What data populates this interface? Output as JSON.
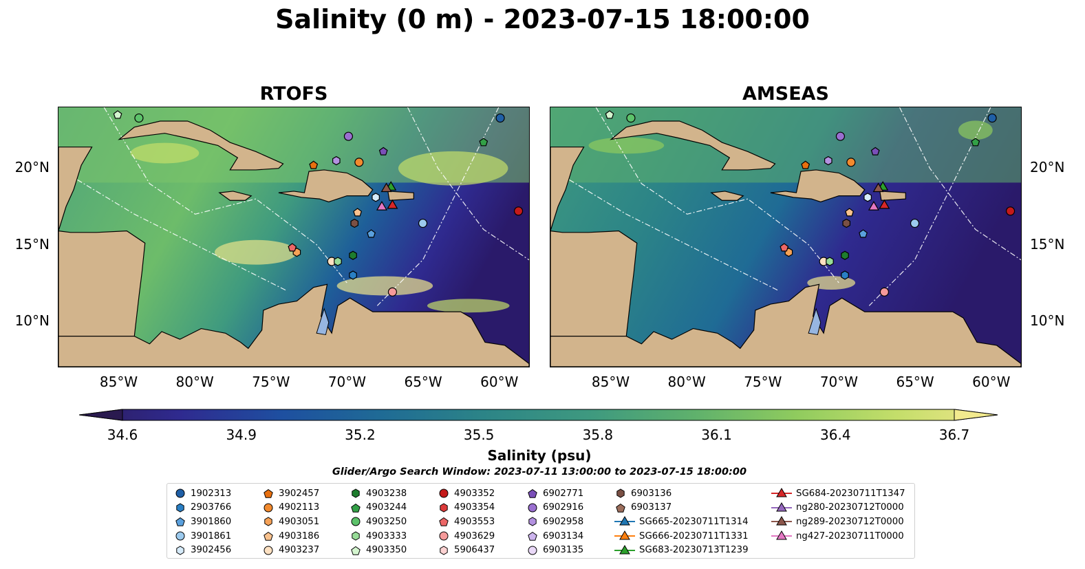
{
  "title": "Salinity (0 m) - 2023-07-15 18:00:00",
  "panels": [
    {
      "title": "RTOFS"
    },
    {
      "title": "AMSEAS"
    }
  ],
  "axes": {
    "x_ticks": [
      "85°W",
      "80°W",
      "75°W",
      "70°W",
      "65°W",
      "60°W"
    ],
    "y_ticks": [
      "20°N",
      "15°N",
      "10°N"
    ]
  },
  "map_extent": {
    "lon_min": -89,
    "lon_max": -58,
    "lat_min": 7,
    "lat_max": 24
  },
  "colorbar": {
    "ticks": [
      "34.6",
      "34.9",
      "35.2",
      "35.5",
      "35.8",
      "36.1",
      "36.4",
      "36.7"
    ],
    "label": "Salinity (psu)",
    "min": 34.6,
    "max": 36.7,
    "colors": [
      "#2c1c5c",
      "#2f2a8f",
      "#1e4fa0",
      "#1f6b95",
      "#2c8487",
      "#3f9a7f",
      "#5fb16c",
      "#8fcb5e",
      "#c4de6a",
      "#f0e68c"
    ]
  },
  "search_window": "Glider/Argo Search Window: 2023-07-11 13:00:00 to 2023-07-15 18:00:00",
  "land_color": "#d2b48c",
  "lake_color": "#97b6e1",
  "legend": {
    "columns": [
      [
        {
          "label": "1902313",
          "marker": "circle",
          "color": "#1f5fa6"
        },
        {
          "label": "2903766",
          "marker": "hexagon",
          "color": "#2a7fc4"
        },
        {
          "label": "3901860",
          "marker": "pentagon",
          "color": "#5aa0dd"
        },
        {
          "label": "3901861",
          "marker": "circle",
          "color": "#9ccaee"
        },
        {
          "label": "3902456",
          "marker": "hexagon",
          "color": "#d6ebfa"
        }
      ],
      [
        {
          "label": "3902457",
          "marker": "pentagon",
          "color": "#e8700f"
        },
        {
          "label": "4902113",
          "marker": "circle",
          "color": "#f28a2e"
        },
        {
          "label": "4903051",
          "marker": "hexagon",
          "color": "#f6a257"
        },
        {
          "label": "4903186",
          "marker": "pentagon",
          "color": "#f9c28e"
        },
        {
          "label": "4903237",
          "marker": "circle",
          "color": "#fde1c2"
        }
      ],
      [
        {
          "label": "4903238",
          "marker": "hexagon",
          "color": "#1e7d2e"
        },
        {
          "label": "4903244",
          "marker": "pentagon",
          "color": "#33a047"
        },
        {
          "label": "4903250",
          "marker": "circle",
          "color": "#5cc26a"
        },
        {
          "label": "4903333",
          "marker": "hexagon",
          "color": "#98dc98"
        },
        {
          "label": "4903350",
          "marker": "pentagon",
          "color": "#d4f5cf"
        }
      ],
      [
        {
          "label": "4903352",
          "marker": "circle",
          "color": "#c41a1a"
        },
        {
          "label": "4903354",
          "marker": "hexagon",
          "color": "#dc3a3a"
        },
        {
          "label": "4903553",
          "marker": "pentagon",
          "color": "#ec6767"
        },
        {
          "label": "4903629",
          "marker": "circle",
          "color": "#f59a9a"
        },
        {
          "label": "5906437",
          "marker": "hexagon",
          "color": "#fcd2d2"
        }
      ],
      [
        {
          "label": "6902771",
          "marker": "pentagon",
          "color": "#7a4fb8"
        },
        {
          "label": "6902916",
          "marker": "circle",
          "color": "#9a6fd0"
        },
        {
          "label": "6902958",
          "marker": "hexagon",
          "color": "#b391e0"
        },
        {
          "label": "6903134",
          "marker": "pentagon",
          "color": "#cdb5ee"
        },
        {
          "label": "6903135",
          "marker": "circle",
          "color": "#ead9f8"
        }
      ],
      [
        {
          "label": "6903136",
          "marker": "hexagon",
          "color": "#7a5044"
        },
        {
          "label": "6903137",
          "marker": "pentagon",
          "color": "#9c6e5c"
        },
        {
          "label": "SG665-20230711T1314",
          "marker": "triangle-line",
          "color": "#1f77b4"
        },
        {
          "label": "SG666-20230711T1331",
          "marker": "triangle-line",
          "color": "#ff7f0e"
        },
        {
          "label": "SG683-20230713T1239",
          "marker": "triangle-line",
          "color": "#2ca02c"
        }
      ],
      [
        {
          "label": "SG684-20230711T1347",
          "marker": "triangle-line",
          "color": "#d62728"
        },
        {
          "label": "ng280-20230712T0000",
          "marker": "triangle-line",
          "color": "#9467bd"
        },
        {
          "label": "ng289-20230712T0000",
          "marker": "triangle-line",
          "color": "#8c564b"
        },
        {
          "label": "ng427-20230711T0000",
          "marker": "triangle-line",
          "color": "#e377c2"
        }
      ]
    ]
  },
  "stations": [
    {
      "id": "1902313",
      "lon": -59.9,
      "lat": 23.3
    },
    {
      "id": "2903766",
      "lon": -69.6,
      "lat": 13.0
    },
    {
      "id": "3901860",
      "lon": -68.4,
      "lat": 15.7
    },
    {
      "id": "3901861",
      "lon": -65.0,
      "lat": 16.4
    },
    {
      "id": "3902456",
      "lon": -68.1,
      "lat": 18.1
    },
    {
      "id": "3902457",
      "lon": -72.2,
      "lat": 20.2
    },
    {
      "id": "4902113",
      "lon": -69.2,
      "lat": 20.4
    },
    {
      "id": "4903051",
      "lon": -73.3,
      "lat": 14.5
    },
    {
      "id": "4903186",
      "lon": -69.3,
      "lat": 17.1
    },
    {
      "id": "4903237",
      "lon": -71.0,
      "lat": 13.9
    },
    {
      "id": "4903238",
      "lon": -69.6,
      "lat": 14.3
    },
    {
      "id": "4903244",
      "lon": -61.0,
      "lat": 21.7
    },
    {
      "id": "4903250",
      "lon": -83.7,
      "lat": 23.3
    },
    {
      "id": "4903333",
      "lon": -70.6,
      "lat": 13.9
    },
    {
      "id": "4903350",
      "lon": -85.1,
      "lat": 23.5
    },
    {
      "id": "4903352",
      "lon": -58.7,
      "lat": 17.2
    },
    {
      "id": "4903553",
      "lon": -73.6,
      "lat": 14.8
    },
    {
      "id": "4903629",
      "lon": -67.0,
      "lat": 11.9
    },
    {
      "id": "6902771",
      "lon": -67.6,
      "lat": 21.1
    },
    {
      "id": "6902916",
      "lon": -69.9,
      "lat": 22.1
    },
    {
      "id": "6903136",
      "lon": -69.5,
      "lat": 16.4
    },
    {
      "id": "6902958",
      "lon": -70.7,
      "lat": 20.5
    },
    {
      "id": "SG683-20230713T1239",
      "lon": -67.1,
      "lat": 18.8
    },
    {
      "id": "ng289-20230712T0000",
      "lon": -67.4,
      "lat": 18.7
    },
    {
      "id": "SG684-20230711T1347",
      "lon": -67.0,
      "lat": 17.6
    },
    {
      "id": "ng427-20230711T0000",
      "lon": -67.7,
      "lat": 17.5
    }
  ]
}
